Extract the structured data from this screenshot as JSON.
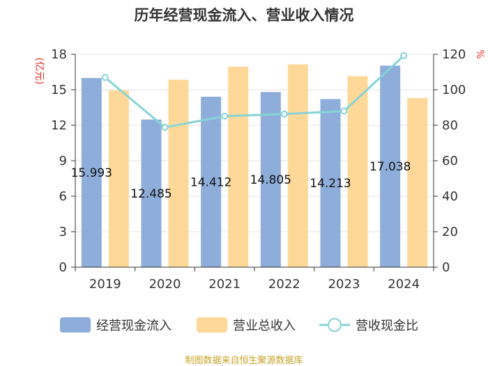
{
  "colors": {
    "bar1": "#8eaddb",
    "bar2": "#fed899",
    "line": "#86d4d8",
    "axis_unit": "#e8312a",
    "footer": "#c9a227"
  },
  "footer_text": "制图数据来自恒生聚源数据库",
  "chart_data": {
    "type": "bar",
    "title": "历年经营现金流入、营业收入情况",
    "categories": [
      "2019",
      "2020",
      "2021",
      "2022",
      "2023",
      "2024"
    ],
    "series": [
      {
        "name": "经营现金流入",
        "type": "bar",
        "axis": "left",
        "values": [
          15.993,
          12.485,
          14.412,
          14.805,
          14.213,
          17.038
        ],
        "labels": [
          "15.993",
          "12.485",
          "14.412",
          "14.805",
          "14.213",
          "17.038"
        ]
      },
      {
        "name": "营业总收入",
        "type": "bar",
        "axis": "left",
        "values": [
          14.95,
          15.85,
          16.95,
          17.15,
          16.15,
          14.3
        ]
      },
      {
        "name": "营收现金比",
        "type": "line",
        "axis": "right",
        "values": [
          106.9,
          78.8,
          85.1,
          86.3,
          88.0,
          119.2
        ]
      }
    ],
    "y_left": {
      "label": "(亿元)",
      "ylim": [
        0,
        18
      ],
      "ticks": [
        "0",
        "3",
        "6",
        "9",
        "12",
        "15",
        "18"
      ]
    },
    "y_right": {
      "label": "%",
      "ylim": [
        0,
        120
      ],
      "ticks": [
        "0",
        "20",
        "40",
        "60",
        "80",
        "100",
        "120"
      ]
    },
    "legend": [
      "经营现金流入",
      "营业总收入",
      "营收现金比"
    ],
    "legend_position": "bottom",
    "grid": true
  }
}
